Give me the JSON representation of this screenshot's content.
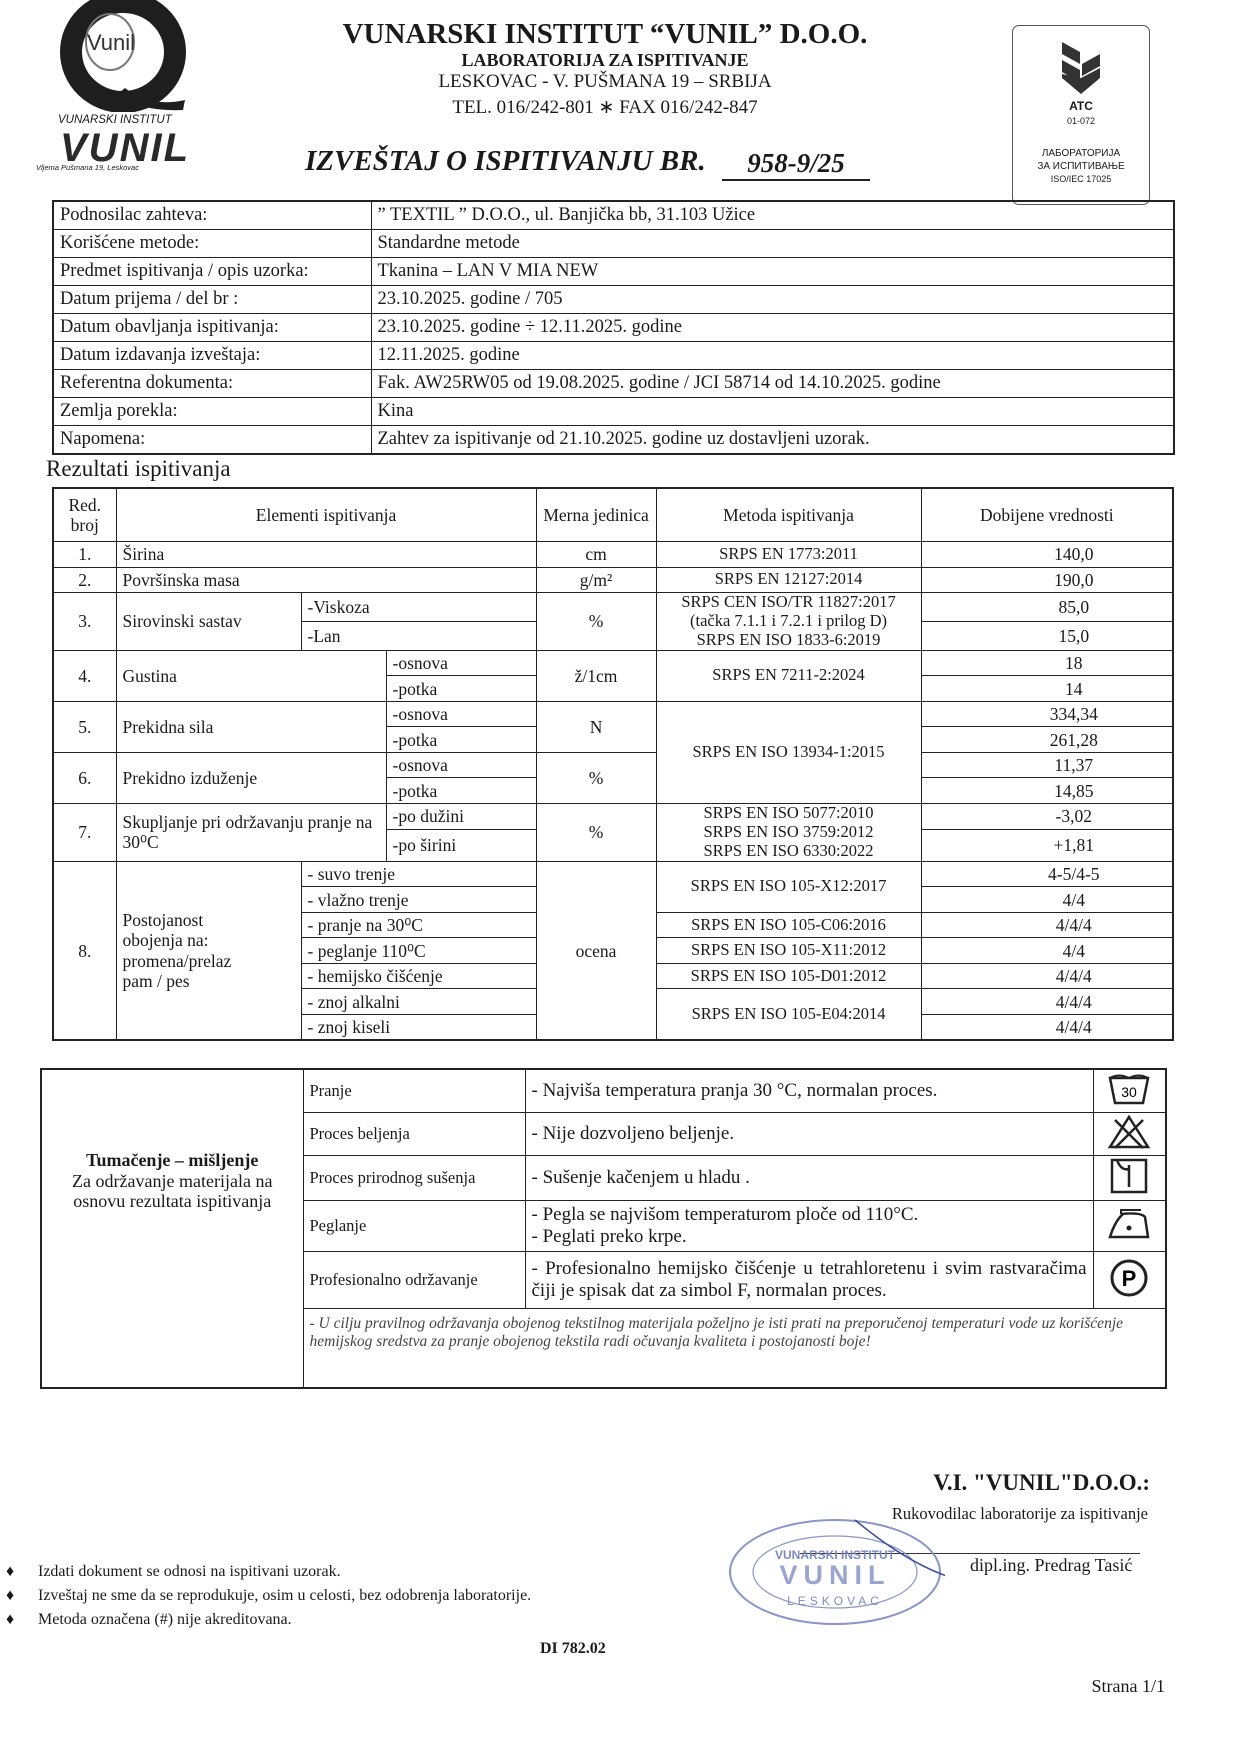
{
  "header": {
    "logo_mark": "Vunil",
    "logo_caption": "VUNARSKI INSTITUT",
    "logo_brand": "VUNIL",
    "logo_address": "Vljema Pušmana 19, Leskovac",
    "institute": "VUNARSKI INSTITUT “VUNIL” D.O.O.",
    "laboratory": "LABORATORIJA ZA ISPITIVANJE",
    "address": "LESKOVAC - V. PUŠMANA 19 – SRBIJA",
    "contact": "TEL. 016/242-801 ∗ FAX 016/242-847",
    "report_title": "IZVEŠTAJ O ISPITIVANJU BR.",
    "report_number": "958-9/25"
  },
  "accreditation": {
    "mark": "ATC",
    "code": "01-072",
    "lines": [
      "ЛАБОРАТОРИЈА",
      "ЗА ИСПИТИВАЊЕ",
      "ISO/IEC 17025"
    ]
  },
  "info": {
    "rows": [
      [
        "Podnosilac zahteva:",
        "” TEXTIL ” D.O.O., ul. Banjička bb, 31.103 Užice"
      ],
      [
        "Korišćene metode:",
        "Standardne metode"
      ],
      [
        "Predmet ispitivanja / opis uzorka:",
        "Tkanina – LAN V MIA NEW"
      ],
      [
        "Datum prijema / del br :",
        "23.10.2025.  godine   /    705"
      ],
      [
        "Datum obavljanja ispitivanja:",
        "23.10.2025.  godine ÷ 12.11.2025.  godine"
      ],
      [
        "Datum izdavanja izveštaja:",
        "12.11.2025.  godine"
      ],
      [
        "Referentna dokumenta:",
        "Fak. AW25RW05 od 19.08.2025. godine  /   JCI 58714 od 14.10.2025. godine"
      ],
      [
        "Zemlja porekla:",
        "Kina"
      ],
      [
        "Napomena:",
        "Zahtev za ispitivanje od 21.10.2025. godine uz dostavljeni uzorak."
      ]
    ]
  },
  "results": {
    "title": "Rezultati ispitivanja",
    "headers": [
      "Red. broj",
      "Elementi ispitivanja",
      "Merna jedinica",
      "Metoda ispitivanja",
      "Dobijene vrednosti"
    ],
    "rows": [
      {
        "no": "1.",
        "element": "Širina",
        "unit": "cm",
        "method": "SRPS EN 1773:2011",
        "value": "140,0"
      },
      {
        "no": "2.",
        "element": "Površinska masa",
        "unit": "g/m²",
        "method": "SRPS EN 12127:2014",
        "value": "190,0"
      },
      {
        "no": "3.",
        "element": "Sirovinski sastav",
        "unit": "%",
        "methods": [
          "SRPS CEN ISO/TR 11827:2017",
          "(tačka 7.1.1 i 7.2.1 i prilog D)",
          "SRPS EN ISO 1833-6:2019"
        ],
        "items": [
          {
            "label": "-Viskoza",
            "value": "85,0"
          },
          {
            "label": "-Lan",
            "value": "15,0"
          }
        ]
      },
      {
        "no": "4.",
        "element": "Gustina",
        "unit": "ž/1cm",
        "method": "SRPS EN 7211-2:2024",
        "items": [
          {
            "label": "-osnova",
            "value": "18"
          },
          {
            "label": "-potka",
            "value": "14"
          }
        ]
      },
      {
        "no": "5.",
        "element": "Prekidna sila",
        "unit": "N",
        "method": "SRPS EN ISO 13934-1:2015",
        "items": [
          {
            "label": "-osnova",
            "value": "334,34"
          },
          {
            "label": "-potka",
            "value": "261,28"
          }
        ]
      },
      {
        "no": "6.",
        "element": "Prekidno izduženje",
        "unit": "%",
        "items": [
          {
            "label": "-osnova",
            "value": "11,37"
          },
          {
            "label": "-potka",
            "value": "14,85"
          }
        ]
      },
      {
        "no": "7.",
        "element": "Skupljanje pri održavanju pranje na 30⁰C",
        "unit": "%",
        "methods": [
          "SRPS EN ISO 5077:2010",
          "SRPS EN ISO 3759:2012",
          "SRPS EN ISO 6330:2022"
        ],
        "items": [
          {
            "label": "-po dužini",
            "value": "-3,02"
          },
          {
            "label": "-po širini",
            "value": "+1,81"
          }
        ]
      },
      {
        "no": "8.",
        "element": [
          "Postojanost",
          "obojenja na:",
          "promena/prelaz",
          "pam / pes"
        ],
        "unit": "ocena",
        "methods": [
          "SRPS EN ISO 105-X12:2017",
          "SRPS EN ISO 105-C06:2016",
          "SRPS EN ISO 105-X11:2012",
          "SRPS EN ISO 105-D01:2012",
          "SRPS EN ISO 105-E04:2014"
        ],
        "items": [
          {
            "label": "- suvo trenje",
            "value": "4-5/4-5"
          },
          {
            "label": "- vlažno trenje",
            "value": "4/4"
          },
          {
            "label": "- pranje na 30⁰C",
            "value": "4/4/4"
          },
          {
            "label": "- peglanje 110⁰C",
            "value": "4/4"
          },
          {
            "label": "- hemijsko čišćenje",
            "value": "4/4/4"
          },
          {
            "label": "- znoj alkalni",
            "value": "4/4/4"
          },
          {
            "label": "- znoj  kiseli",
            "value": "4/4/4"
          }
        ]
      }
    ]
  },
  "interpretation": {
    "heading": "Tumačenje – mišljenje",
    "subheading": "Za održavanje materijala na osnovu rezultata ispitivanja",
    "rows": [
      {
        "label": "Pranje",
        "text": [
          "- Najviša temperatura pranja 30 °C, normalan proces."
        ],
        "symbol": "30"
      },
      {
        "label": "Proces beljenja",
        "text": [
          "- Nije dozvoljeno beljenje."
        ]
      },
      {
        "label": "Proces prirodnog sušenja",
        "text": [
          "- Sušenje kačenjem u hladu ."
        ]
      },
      {
        "label": "Peglanje",
        "text": [
          "- Pegla se najvišom temperaturom ploče od 110°C.",
          "- Peglati preko krpe."
        ]
      },
      {
        "label": "Profesionalno održavanje",
        "text": [
          "- Profesionalno hemijsko čišćenje u tetrahloretenu i svim rastvaračima čiji je spisak dat za simbol F, normalan proces."
        ],
        "symbol": "P"
      }
    ],
    "note": "- U cilju pravilnog održavanja obojenog tekstilnog materijala poželjno je isti prati na preporučenoj temperaturi vode uz korišćenje hemijskog sredstva za pranje obojenog tekstila radi očuvanja kvaliteta i postojanosti boje!"
  },
  "signature": {
    "company": "V.I. \"VUNIL\"D.O.O.:",
    "role": "Rukovodilac laboratorije za ispitivanje",
    "name": "dipl.ing. Predrag Tasić",
    "stamp": [
      "VUNARSKI INSTITUT",
      "VUNIL",
      "LESKOVAC"
    ]
  },
  "footer": {
    "notes": [
      "Izdati dokument se odnosi na ispitivani uzorak.",
      "Izveštaj ne sme da se reprodukuje, osim u celosti, bez odobrenja laboratorije.",
      "Metoda označena (#) nije akreditovana."
    ],
    "doc_code": "DI 782.02",
    "page": "Strana 1/1"
  }
}
